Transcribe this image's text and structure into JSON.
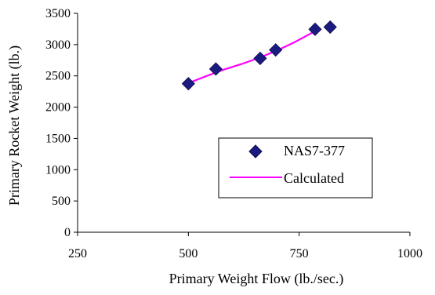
{
  "chart_data": {
    "type": "scatter",
    "xlabel": "Primary Weight Flow (lb./sec.)",
    "ylabel": "Primary Rocket Weight (lb.)",
    "xlim": [
      250,
      1000
    ],
    "ylim": [
      0,
      3500
    ],
    "x_ticks": [
      250,
      500,
      750,
      1000
    ],
    "y_ticks": [
      0,
      500,
      1000,
      1500,
      2000,
      2500,
      3000,
      3500
    ],
    "grid": false,
    "legend_position": "lower-right",
    "series": [
      {
        "name": "NAS7-377",
        "kind": "scatter",
        "marker": "diamond",
        "color": "#1a1a80",
        "x": [
          500,
          562,
          662,
          697,
          786,
          820
        ],
        "y": [
          2375,
          2610,
          2780,
          2915,
          3245,
          3280
        ]
      },
      {
        "name": "Calculated",
        "kind": "line",
        "color": "#ff00ff",
        "x": [
          500,
          540,
          580,
          620,
          660,
          700,
          740,
          786
        ],
        "y": [
          2385,
          2495,
          2600,
          2690,
          2790,
          2905,
          3040,
          3215
        ]
      }
    ]
  }
}
